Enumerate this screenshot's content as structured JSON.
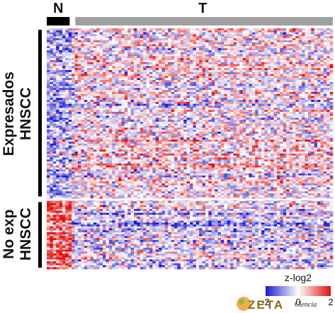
{
  "chart_data": {
    "type": "heatmap",
    "title": "",
    "xlabel": "",
    "ylabel": "",
    "column_groups": [
      {
        "name": "N",
        "color": "#000000",
        "fraction": 0.09
      },
      {
        "name": "T",
        "color": "#a0a0a0",
        "fraction": 0.91
      }
    ],
    "row_groups": [
      {
        "name_line1": "Expresados",
        "name_line2": "HNSCC",
        "fraction": 0.71,
        "bias_normal": -0.6,
        "bias_tumor": 0.15
      },
      {
        "name_line1": "No exp",
        "name_line2": "HNSCC",
        "fraction": 0.29,
        "bias_normal": 1.2,
        "bias_tumor": -0.35
      }
    ],
    "colorbar": {
      "title": "z-log2",
      "min": -2,
      "mid": 0,
      "max": 2,
      "min_label": "-2",
      "mid_label": "0",
      "max_label": "2",
      "low_color": "#1a1ad0",
      "mid_color": "#ffffff",
      "high_color": "#e01010"
    }
  },
  "watermark": {
    "logo_text": "ZETA",
    "sub_text": "Ciencia"
  }
}
